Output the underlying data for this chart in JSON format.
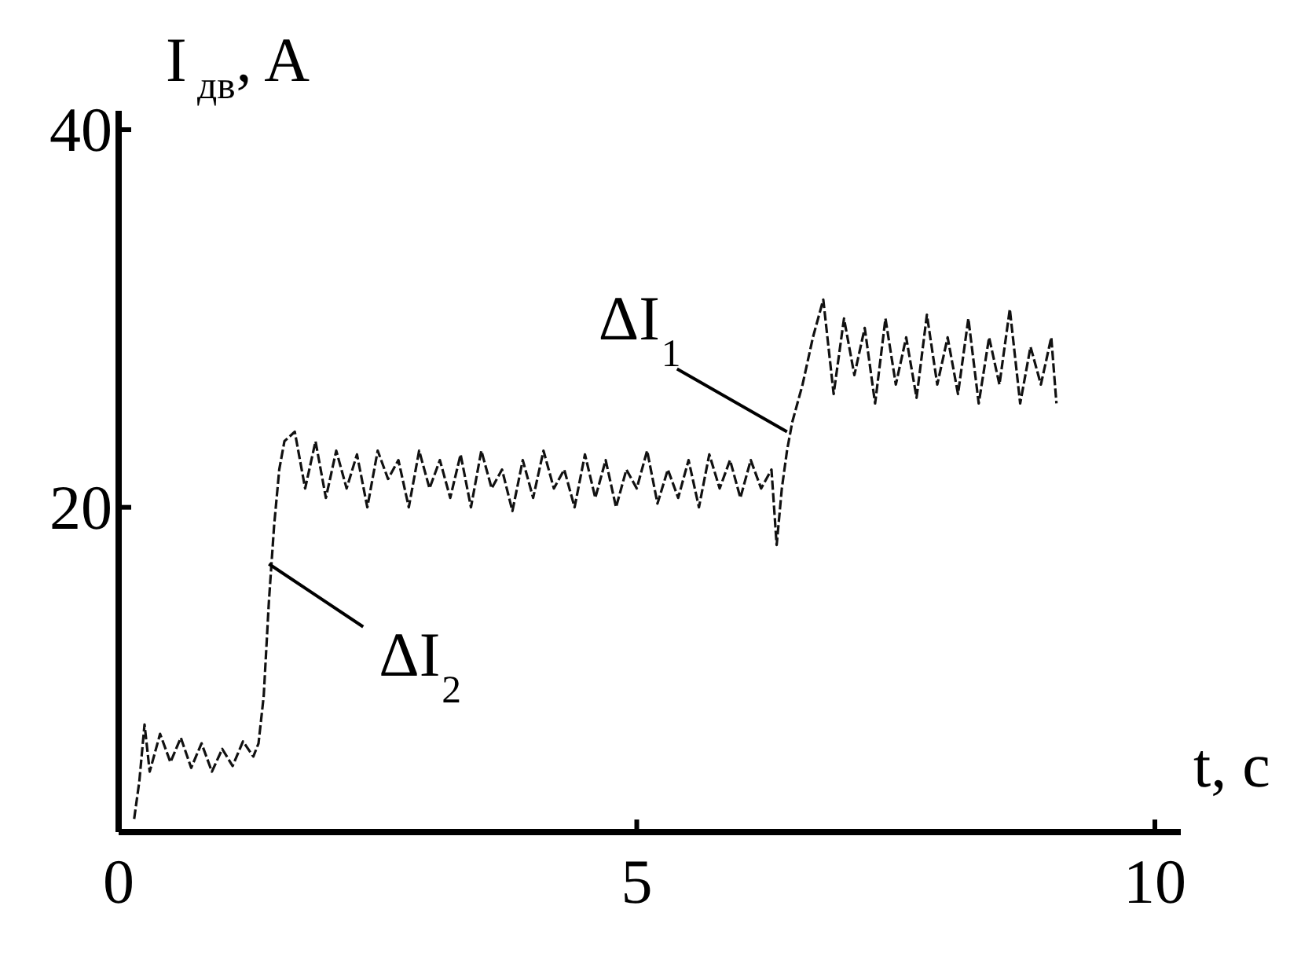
{
  "chart_data": {
    "type": "line",
    "xlabel": "t, c",
    "ylabel": "I$_{дв}$, A",
    "xlim": [
      0,
      10.25
    ],
    "ylim": [
      2.8,
      41
    ],
    "xticks": [
      0,
      5,
      10
    ],
    "yticks": [
      20,
      40
    ],
    "grid": false,
    "marker": "none",
    "line_style": "dashed",
    "series": [
      {
        "color": "#111111",
        "x": [
          0.15,
          0.2,
          0.25,
          0.3,
          0.4,
          0.5,
          0.6,
          0.7,
          0.8,
          0.9,
          1.0,
          1.1,
          1.2,
          1.3,
          1.35,
          1.4,
          1.45,
          1.5,
          1.55,
          1.6,
          1.7,
          1.8,
          1.9,
          2.0,
          2.1,
          2.2,
          2.3,
          2.4,
          2.5,
          2.6,
          2.7,
          2.8,
          2.9,
          3.0,
          3.1,
          3.2,
          3.3,
          3.4,
          3.5,
          3.6,
          3.7,
          3.8,
          3.9,
          4.0,
          4.1,
          4.2,
          4.3,
          4.4,
          4.5,
          4.6,
          4.7,
          4.8,
          4.9,
          5.0,
          5.1,
          5.2,
          5.3,
          5.4,
          5.5,
          5.6,
          5.7,
          5.8,
          5.9,
          6.0,
          6.1,
          6.2,
          6.3,
          6.35,
          6.4,
          6.45,
          6.5,
          6.55,
          6.6,
          6.7,
          6.8,
          6.9,
          7.0,
          7.1,
          7.2,
          7.3,
          7.4,
          7.5,
          7.6,
          7.7,
          7.8,
          7.9,
          8.0,
          8.1,
          8.2,
          8.3,
          8.4,
          8.5,
          8.6,
          8.7,
          8.8,
          8.9,
          9.0,
          9.05
        ],
        "values": [
          3.5,
          5.5,
          8.5,
          6,
          8,
          6.5,
          7.8,
          6.2,
          7.5,
          6,
          7.2,
          6.3,
          7.6,
          6.8,
          7.5,
          10,
          15,
          19,
          22,
          23.5,
          24,
          21,
          23.5,
          20.5,
          23,
          21,
          22.8,
          20,
          23,
          21.5,
          22.5,
          20,
          23,
          21,
          22.5,
          20.5,
          22.8,
          20,
          23,
          21,
          22,
          19.8,
          22.5,
          20.5,
          23,
          21,
          22,
          20,
          22.8,
          20.5,
          22.5,
          20,
          22,
          21,
          23,
          20.2,
          22,
          20.5,
          22.5,
          20,
          22.8,
          21,
          22.5,
          20.5,
          22.5,
          21,
          22,
          18,
          21,
          23,
          24.5,
          25.5,
          26.5,
          29,
          31,
          26,
          30,
          27,
          29.5,
          25.5,
          30,
          26.5,
          29,
          25.8,
          30.2,
          26.5,
          29,
          26,
          30,
          25.5,
          29,
          26.5,
          30.5,
          25.5,
          28.5,
          26.5,
          29,
          25.5
        ]
      }
    ],
    "annotations": [
      {
        "text": "ΔI$_{1}$",
        "x": 6.45,
        "y": 24
      },
      {
        "text": "ΔI$_{2}$",
        "x": 1.45,
        "y": 17
      }
    ]
  }
}
